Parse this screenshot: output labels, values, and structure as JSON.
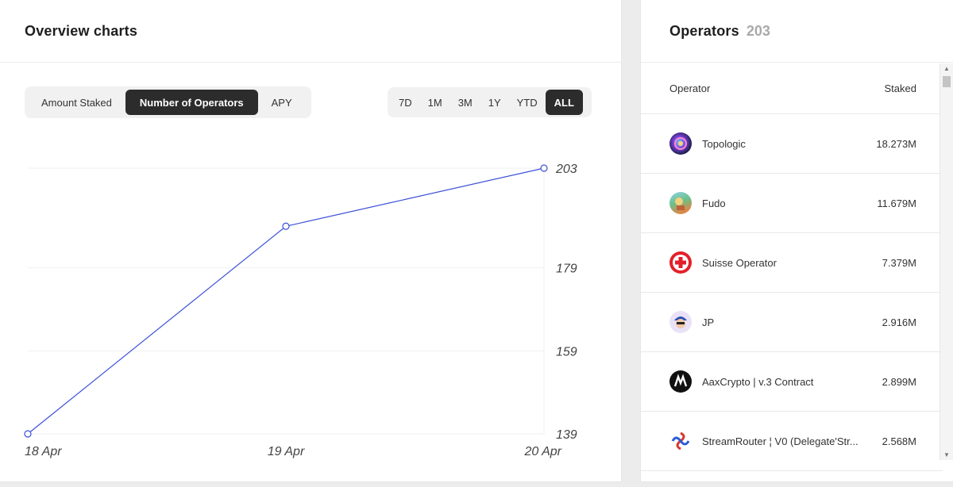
{
  "overview": {
    "title": "Overview charts",
    "metric_tabs": [
      {
        "label": "Amount Staked",
        "active": false
      },
      {
        "label": "Number of Operators",
        "active": true
      },
      {
        "label": "APY",
        "active": false
      }
    ],
    "range_tabs": [
      {
        "label": "7D",
        "active": false
      },
      {
        "label": "1M",
        "active": false
      },
      {
        "label": "3M",
        "active": false
      },
      {
        "label": "1Y",
        "active": false
      },
      {
        "label": "YTD",
        "active": false
      },
      {
        "label": "ALL",
        "active": true
      }
    ]
  },
  "chart_data": {
    "type": "line",
    "x": [
      "18 Apr",
      "19 Apr",
      "20 Apr"
    ],
    "series": [
      {
        "values": [
          139,
          189,
          203
        ],
        "color": "#3a4fd8"
      }
    ],
    "y_ticks": [
      139,
      159,
      179,
      203
    ],
    "ylim": [
      139,
      203
    ],
    "grid": true,
    "y_axis_position": "right"
  },
  "operators": {
    "title": "Operators",
    "count": "203",
    "columns": {
      "operator": "Operator",
      "staked": "Staked"
    },
    "rows": [
      {
        "name": "Topologic",
        "staked": "18.273M",
        "icon": "topologic-icon"
      },
      {
        "name": "Fudo",
        "staked": "11.679M",
        "icon": "fudo-icon"
      },
      {
        "name": "Suisse Operator",
        "staked": "7.379M",
        "icon": "swiss-cross-icon"
      },
      {
        "name": "JP",
        "staked": "2.916M",
        "icon": "jp-avatar-icon"
      },
      {
        "name": "AaxCrypto | v.3 Contract",
        "staked": "2.899M",
        "icon": "aaxcrypto-icon"
      },
      {
        "name": "StreamRouter ¦ V0 (Delegate'Str...",
        "staked": "2.568M",
        "icon": "streamrouter-icon"
      }
    ]
  },
  "colors": {
    "accent_line": "#3a4fd8",
    "active_tab_bg": "#2c2c2c"
  }
}
